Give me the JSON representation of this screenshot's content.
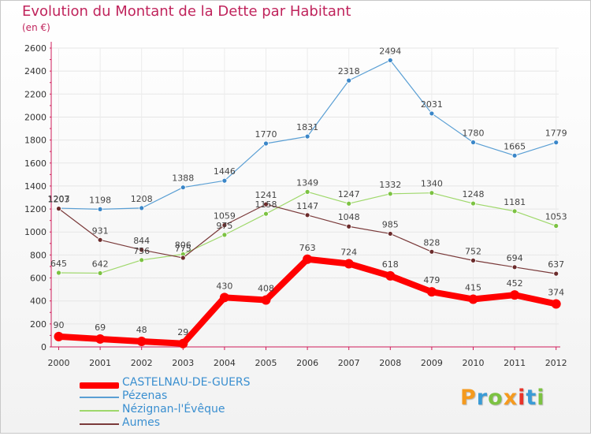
{
  "title": "Evolution du Montant de la Dette par Habitant",
  "subtitle": "(en €)",
  "legend": [
    {
      "name": "CASTELNAU-DE-GUERS"
    },
    {
      "name": "Pézenas"
    },
    {
      "name": "Nézignan-l'Évêque"
    },
    {
      "name": "Aumes"
    }
  ],
  "logo": {
    "letters": [
      "P",
      "r",
      "o",
      "x",
      "i",
      "t",
      "i"
    ],
    "colors": [
      "#f59a1e",
      "#3a9bd6",
      "#7cc242",
      "#f59a1e",
      "#e8332a",
      "#3a9bd6",
      "#7cc242"
    ]
  },
  "chart_data": {
    "type": "line",
    "title": "Evolution du Montant de la Dette par Habitant",
    "ylabel": "(en €)",
    "xlabel": "",
    "ylim": [
      0,
      2600
    ],
    "yticks": [
      0,
      200,
      400,
      600,
      800,
      1000,
      1200,
      1400,
      1600,
      1800,
      2000,
      2200,
      2400,
      2600
    ],
    "categories": [
      "2000",
      "2001",
      "2002",
      "2003",
      "2004",
      "2005",
      "2006",
      "2007",
      "2008",
      "2009",
      "2010",
      "2011",
      "2012"
    ],
    "series": [
      {
        "name": "Pézenas",
        "color": "#5a9fd4",
        "marker": "#3a86c8",
        "values": [
          1207,
          1198,
          1208,
          1388,
          1446,
          1770,
          1831,
          2318,
          2494,
          2031,
          1780,
          1665,
          1779
        ]
      },
      {
        "name": "Nézignan-l'Évêque",
        "color": "#9fd86b",
        "marker": "#7cc242",
        "values": [
          645,
          642,
          756,
          806,
          975,
          1158,
          1349,
          1247,
          1332,
          1340,
          1248,
          1181,
          1053
        ]
      },
      {
        "name": "Aumes",
        "color": "#7a3a3a",
        "marker": "#6b2b2b",
        "values": [
          1203,
          931,
          844,
          775,
          1059,
          1241,
          1147,
          1048,
          985,
          828,
          752,
          694,
          637
        ]
      },
      {
        "name": "CASTELNAU-DE-GUERS",
        "color": "#ff0000",
        "marker": "#ff0000",
        "values": [
          90,
          69,
          48,
          29,
          430,
          408,
          763,
          724,
          618,
          479,
          415,
          452,
          374
        ]
      }
    ]
  }
}
